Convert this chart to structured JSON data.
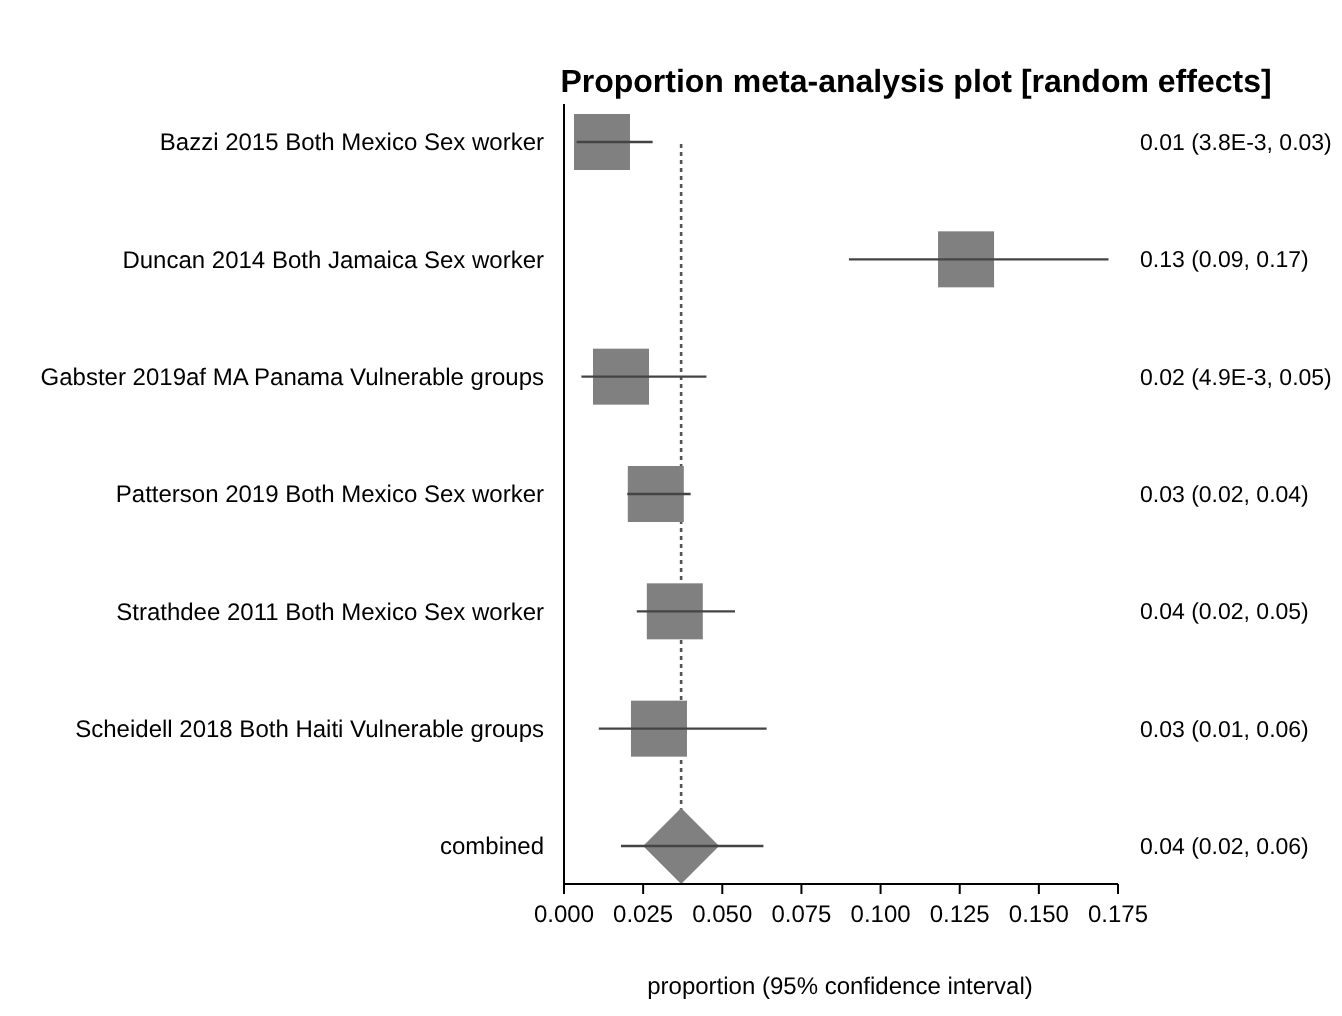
{
  "chart_data": {
    "type": "scatter",
    "orientation": "horizontal",
    "title": "Proportion meta-analysis plot [random effects]",
    "xlabel": "proportion (95% confidence interval)",
    "categories": [
      "Bazzi 2015 Both Mexico Sex worker",
      "Duncan 2014 Both Jamaica Sex worker",
      "Gabster 2019af MA Panama Vulnerable groups",
      "Patterson 2019 Both Mexico Sex worker",
      "Strathdee 2011 Both Mexico Sex worker",
      "Scheidell 2018 Both Haiti Vulnerable groups",
      "combined"
    ],
    "series": [
      {
        "color": "#808080",
        "marker": "square",
        "values": [
          0.012,
          0.127,
          0.018,
          0.029,
          0.035,
          0.03,
          null
        ],
        "errors": [
          [
            0.004,
            0.028
          ],
          [
            0.09,
            0.172
          ],
          [
            0.0055,
            0.045
          ],
          [
            0.02,
            0.04
          ],
          [
            0.023,
            0.054
          ],
          [
            0.011,
            0.064
          ],
          null
        ]
      },
      {
        "color": "#808080",
        "marker": "diamond",
        "values": [
          null,
          null,
          null,
          null,
          null,
          null,
          0.037
        ],
        "errors": [
          null,
          null,
          null,
          null,
          null,
          null,
          [
            0.018,
            0.063
          ]
        ]
      }
    ],
    "annotations": [
      "0.01 (3.8E-3, 0.03)",
      "0.13 (0.09, 0.17)",
      "0.02 (4.9E-3, 0.05)",
      "0.03 (0.02, 0.04)",
      "0.04 (0.02, 0.05)",
      "0.03 (0.01, 0.06)",
      "0.04 (0.02, 0.06)"
    ],
    "xlim": [
      0,
      0.175
    ],
    "xticks": [
      {
        "value": 0,
        "label": "0.000"
      },
      {
        "value": 0.025,
        "label": "0.025"
      },
      {
        "value": 0.05,
        "label": "0.050"
      },
      {
        "value": 0.075,
        "label": "0.075"
      },
      {
        "value": 0.1,
        "label": "0.100"
      },
      {
        "value": 0.125,
        "label": "0.125"
      },
      {
        "value": 0.15,
        "label": "0.150"
      },
      {
        "value": 0.175,
        "label": "0.175"
      }
    ],
    "ref_lines": [
      {
        "axis": "x",
        "value": 0.037,
        "line_style": "dotted",
        "color": "#555555"
      }
    ],
    "grid": false
  }
}
